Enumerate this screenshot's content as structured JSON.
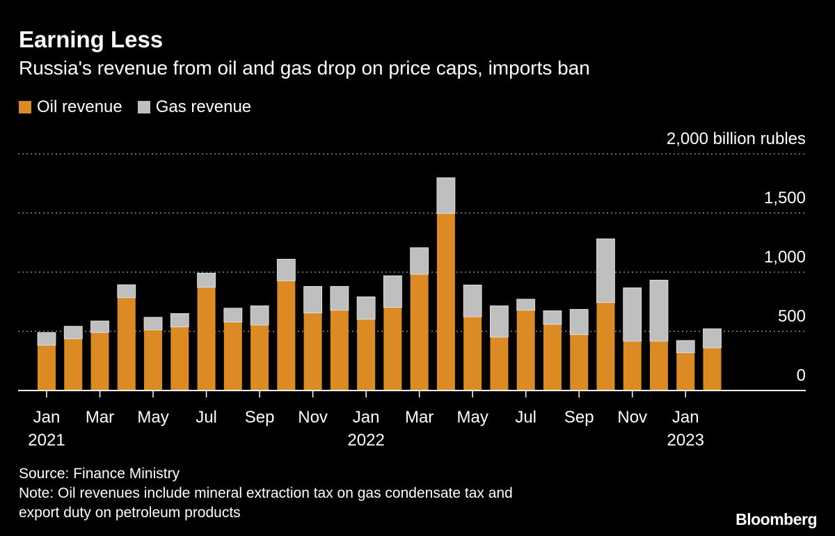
{
  "chart_data": {
    "type": "bar",
    "stacked": true,
    "title": "Earning Less",
    "subtitle": "Russia's revenue from oil and gas drop on price caps, imports ban",
    "ylabel": "billion rubles",
    "ylim": [
      0,
      2000
    ],
    "yticks": [
      0,
      500,
      1000,
      1500,
      2000
    ],
    "ytick_labels": [
      "0",
      "500",
      "1,000",
      "1,500",
      "2,000 billion rubles"
    ],
    "grid": true,
    "legend_position": "top-left",
    "categories": [
      "Jan 2021",
      "Feb 2021",
      "Mar 2021",
      "Apr 2021",
      "May 2021",
      "Jun 2021",
      "Jul 2021",
      "Aug 2021",
      "Sep 2021",
      "Oct 2021",
      "Nov 2021",
      "Dec 2021",
      "Jan 2022",
      "Feb 2022",
      "Mar 2022",
      "Apr 2022",
      "May 2022",
      "Jun 2022",
      "Jul 2022",
      "Aug 2022",
      "Sep 2022",
      "Oct 2022",
      "Nov 2022",
      "Dec 2022",
      "Jan 2023",
      "Feb 2023"
    ],
    "xtick_labels": [
      {
        "month": "Jan",
        "year": "2021",
        "index": 0
      },
      {
        "month": "Mar",
        "year": "",
        "index": 2
      },
      {
        "month": "May",
        "year": "",
        "index": 4
      },
      {
        "month": "Jul",
        "year": "",
        "index": 6
      },
      {
        "month": "Sep",
        "year": "",
        "index": 8
      },
      {
        "month": "Nov",
        "year": "",
        "index": 10
      },
      {
        "month": "Jan",
        "year": "2022",
        "index": 12
      },
      {
        "month": "Mar",
        "year": "",
        "index": 14
      },
      {
        "month": "May",
        "year": "",
        "index": 16
      },
      {
        "month": "Jul",
        "year": "",
        "index": 18
      },
      {
        "month": "Sep",
        "year": "",
        "index": 20
      },
      {
        "month": "Nov",
        "year": "",
        "index": 22
      },
      {
        "month": "Jan",
        "year": "2023",
        "index": 24
      }
    ],
    "series": [
      {
        "name": "Oil revenue",
        "color": "#dc8a24",
        "values": [
          382,
          437,
          490,
          784,
          512,
          537,
          872,
          578,
          553,
          927,
          655,
          678,
          602,
          702,
          982,
          1496,
          623,
          451,
          678,
          559,
          472,
          743,
          417,
          417,
          319,
          360
        ]
      },
      {
        "name": "Gas revenue",
        "color": "#bfbfbf",
        "values": [
          108,
          106,
          98,
          110,
          107,
          114,
          120,
          118,
          163,
          183,
          225,
          202,
          190,
          268,
          225,
          302,
          269,
          265,
          94,
          115,
          214,
          539,
          451,
          516,
          104,
          162
        ]
      }
    ]
  },
  "footer": {
    "source": "Source: Finance Ministry",
    "note_line1": "Note: Oil revenues include mineral extraction tax on gas condensate tax and",
    "note_line2": "export duty on petroleum products"
  },
  "logo": "Bloomberg"
}
